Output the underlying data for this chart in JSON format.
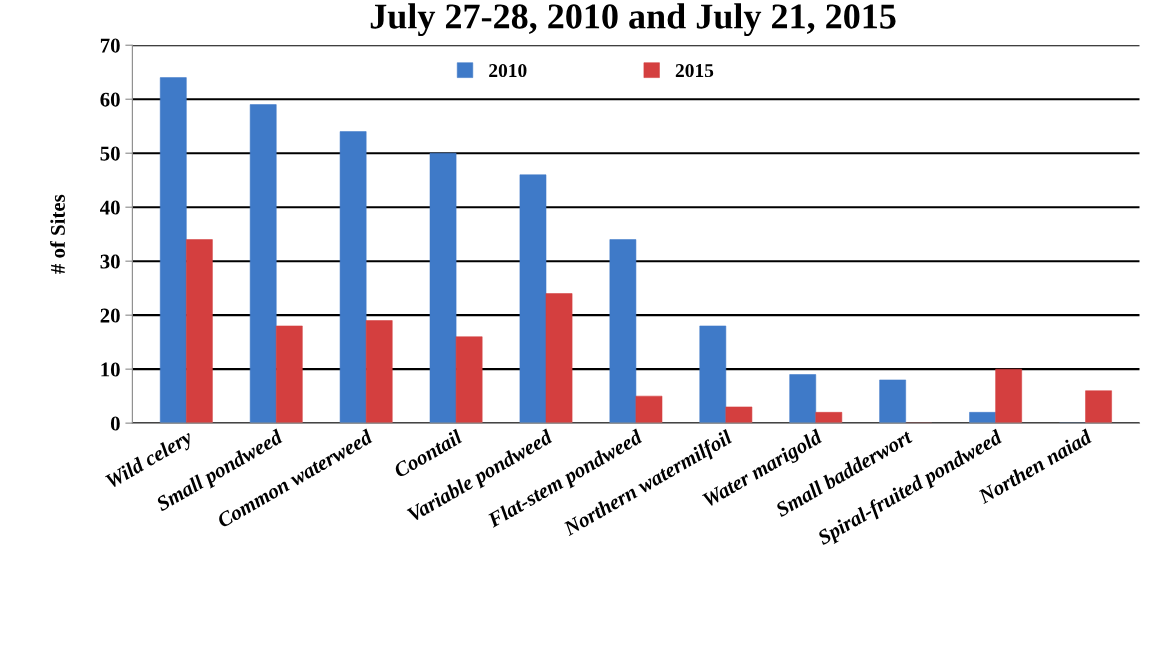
{
  "chart_data": {
    "type": "bar",
    "title": "July 27-28, 2010 and July 21, 2015",
    "ylabel": "# of Sites",
    "categories": [
      "Wild celery",
      "Small pondweed",
      "Common waterweed",
      "Coontail",
      "Variable pondweed",
      "Flat-stem pondweed",
      "Northern watermilfoil",
      "Water marigold",
      "Small badderwort",
      "Spiral-fruited pondweed",
      "Northen naiad"
    ],
    "series": [
      {
        "name": "2010",
        "color": "#3f7ac8",
        "values": [
          64,
          59,
          54,
          50,
          46,
          34,
          18,
          9,
          8,
          2,
          0
        ]
      },
      {
        "name": "2015",
        "color": "#d43f3f",
        "values": [
          34,
          18,
          19,
          16,
          24,
          5,
          3,
          2,
          0,
          10,
          6
        ]
      }
    ],
    "ylim": [
      0,
      70
    ],
    "yticks": [
      0,
      10,
      20,
      30,
      40,
      50,
      60,
      70
    ],
    "grid": "y",
    "legend": "top"
  }
}
